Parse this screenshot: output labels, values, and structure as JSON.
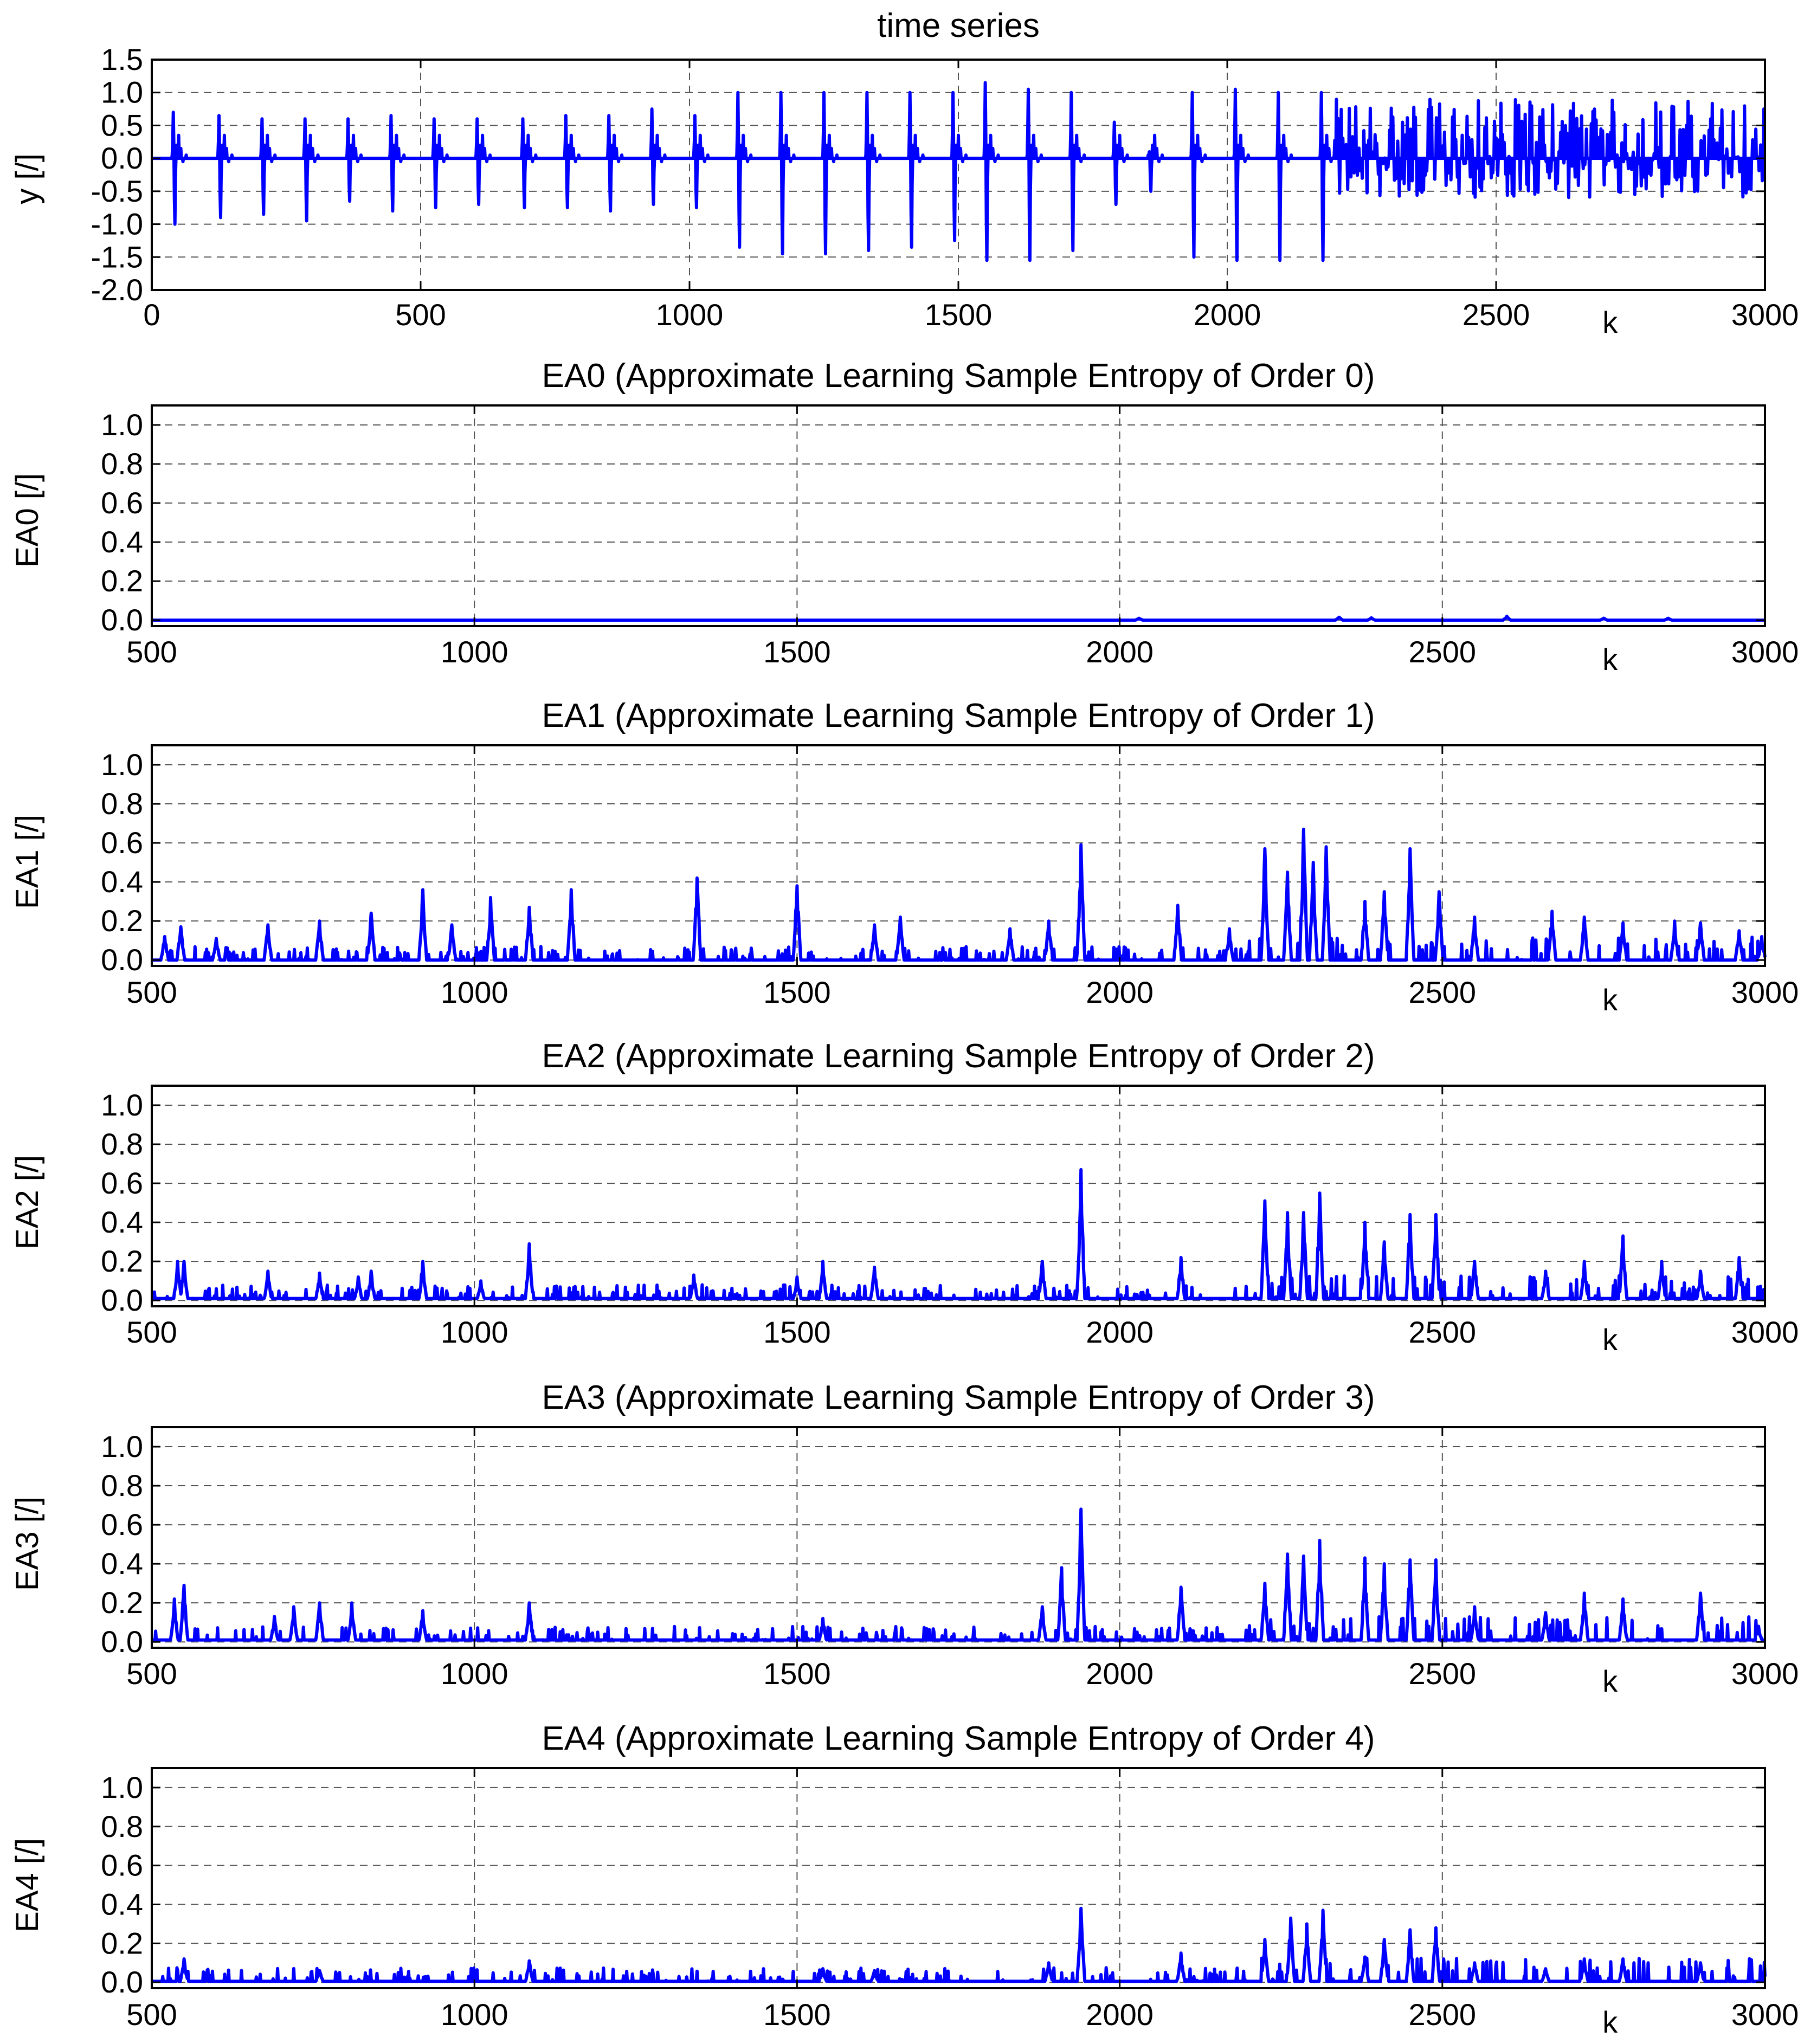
{
  "chart_data": [
    {
      "type": "line",
      "title": "time series",
      "xlabel": "k",
      "ylabel": "y [/]",
      "xlim": [
        0,
        3000
      ],
      "ylim": [
        -2.0,
        1.5
      ],
      "xticks": [
        "0",
        "500",
        "1000",
        "1500",
        "2000",
        "2500",
        "3000"
      ],
      "yticks": [
        "1.5",
        "1.0",
        "0.5",
        "0.0",
        "-0.5",
        "-1.0",
        "-1.5",
        "-2.0"
      ],
      "grid": true,
      "color": "#0000ff",
      "series": [
        {
          "name": "y",
          "spike_k": [
            40,
            125,
            205,
            285,
            365,
            445,
            525,
            605,
            690,
            770,
            850,
            930,
            1010,
            1090,
            1170,
            1250,
            1330,
            1410,
            1490,
            1550,
            1630,
            1710,
            1790,
            1855,
            1935,
            2015,
            2095,
            2175
          ],
          "spike_peak": [
            0.7,
            0.65,
            0.6,
            0.6,
            0.6,
            0.65,
            0.6,
            0.6,
            0.6,
            0.65,
            0.65,
            0.75,
            0.65,
            1.0,
            1.0,
            1.0,
            1.0,
            1.0,
            1.0,
            1.15,
            1.05,
            1.0,
            0.55,
            0.1,
            1.0,
            1.05,
            1.0,
            1.0
          ],
          "spike_trough": [
            -1.0,
            -0.9,
            -0.85,
            -0.95,
            -0.65,
            -0.8,
            -0.75,
            -0.7,
            -0.75,
            -0.75,
            -0.8,
            -0.7,
            -0.75,
            -1.35,
            -1.45,
            -1.45,
            -1.4,
            -1.35,
            -1.25,
            -1.55,
            -1.55,
            -1.4,
            -0.7,
            -0.5,
            -1.5,
            -1.55,
            -1.55,
            -1.55
          ],
          "noise_start_k": 2200,
          "noise_amplitude": [
            -0.6,
            0.9
          ]
        }
      ]
    },
    {
      "type": "line",
      "title": "EA0 (Approximate Learning Sample Entropy of Order 0)",
      "xlabel": "k",
      "ylabel": "EA0 [/]",
      "xlim": [
        500,
        3000
      ],
      "ylim": [
        -0.03,
        1.1
      ],
      "xticks": [
        "500",
        "1000",
        "1500",
        "2000",
        "2500",
        "3000"
      ],
      "yticks": [
        "1.0",
        "0.8",
        "0.6",
        "0.4",
        "0.2",
        "0.0"
      ],
      "grid": true,
      "color": "#0000ff",
      "series": [
        {
          "name": "EA0",
          "peaks": [
            [
              2030,
              0.01
            ],
            [
              2340,
              0.015
            ],
            [
              2390,
              0.012
            ],
            [
              2600,
              0.02
            ],
            [
              2750,
              0.01
            ],
            [
              2850,
              0.01
            ]
          ],
          "baseline": 0.0
        }
      ]
    },
    {
      "type": "line",
      "title": "EA1 (Approximate Learning Sample Entropy of Order 1)",
      "xlabel": "k",
      "ylabel": "EA1 [/]",
      "xlim": [
        500,
        3000
      ],
      "ylim": [
        -0.03,
        1.1
      ],
      "xticks": [
        "500",
        "1000",
        "1500",
        "2000",
        "2500",
        "3000"
      ],
      "yticks": [
        "1.0",
        "0.8",
        "0.6",
        "0.4",
        "0.2",
        "0.0"
      ],
      "grid": true,
      "color": "#0000ff",
      "series": [
        {
          "name": "EA1",
          "peaks": [
            [
              520,
              0.12
            ],
            [
              545,
              0.17
            ],
            [
              600,
              0.11
            ],
            [
              680,
              0.18
            ],
            [
              760,
              0.2
            ],
            [
              840,
              0.24
            ],
            [
              920,
              0.36
            ],
            [
              965,
              0.18
            ],
            [
              1025,
              0.32
            ],
            [
              1085,
              0.27
            ],
            [
              1150,
              0.36
            ],
            [
              1345,
              0.42
            ],
            [
              1500,
              0.38
            ],
            [
              1620,
              0.18
            ],
            [
              1660,
              0.22
            ],
            [
              1830,
              0.16
            ],
            [
              1890,
              0.2
            ],
            [
              1940,
              0.59
            ],
            [
              2090,
              0.28
            ],
            [
              2170,
              0.16
            ],
            [
              2225,
              0.57
            ],
            [
              2260,
              0.45
            ],
            [
              2285,
              0.67
            ],
            [
              2300,
              0.5
            ],
            [
              2320,
              0.58
            ],
            [
              2380,
              0.3
            ],
            [
              2410,
              0.35
            ],
            [
              2450,
              0.57
            ],
            [
              2495,
              0.35
            ],
            [
              2550,
              0.22
            ],
            [
              2670,
              0.25
            ],
            [
              2720,
              0.22
            ],
            [
              2780,
              0.19
            ],
            [
              2860,
              0.2
            ],
            [
              2900,
              0.19
            ],
            [
              2960,
              0.15
            ],
            [
              2995,
              0.12
            ]
          ],
          "baseline": 0.0
        }
      ]
    },
    {
      "type": "line",
      "title": "EA2 (Approximate Learning Sample Entropy of Order 2)",
      "xlabel": "k",
      "ylabel": "EA2 [/]",
      "xlim": [
        500,
        3000
      ],
      "ylim": [
        -0.03,
        1.1
      ],
      "xticks": [
        "500",
        "1000",
        "1500",
        "2000",
        "2500",
        "3000"
      ],
      "yticks": [
        "1.0",
        "0.8",
        "0.6",
        "0.4",
        "0.2",
        "0.0"
      ],
      "grid": true,
      "color": "#0000ff",
      "series": [
        {
          "name": "EA2",
          "peaks": [
            [
              540,
              0.2
            ],
            [
              550,
              0.2
            ],
            [
              680,
              0.15
            ],
            [
              760,
              0.14
            ],
            [
              820,
              0.12
            ],
            [
              840,
              0.15
            ],
            [
              920,
              0.2
            ],
            [
              1010,
              0.1
            ],
            [
              1085,
              0.29
            ],
            [
              1340,
              0.13
            ],
            [
              1500,
              0.12
            ],
            [
              1540,
              0.2
            ],
            [
              1620,
              0.17
            ],
            [
              1880,
              0.2
            ],
            [
              1940,
              0.67
            ],
            [
              2095,
              0.22
            ],
            [
              2225,
              0.51
            ],
            [
              2260,
              0.45
            ],
            [
              2285,
              0.45
            ],
            [
              2310,
              0.55
            ],
            [
              2380,
              0.4
            ],
            [
              2410,
              0.3
            ],
            [
              2450,
              0.44
            ],
            [
              2490,
              0.44
            ],
            [
              2550,
              0.2
            ],
            [
              2660,
              0.15
            ],
            [
              2720,
              0.2
            ],
            [
              2780,
              0.33
            ],
            [
              2840,
              0.2
            ],
            [
              2900,
              0.15
            ],
            [
              2960,
              0.22
            ]
          ],
          "baseline": 0.01
        }
      ]
    },
    {
      "type": "line",
      "title": "EA3 (Approximate Learning Sample Entropy of Order 3)",
      "xlabel": "k",
      "ylabel": "EA3 [/]",
      "xlim": [
        500,
        3000
      ],
      "ylim": [
        -0.03,
        1.1
      ],
      "xticks": [
        "500",
        "1000",
        "1500",
        "2000",
        "2500",
        "3000"
      ],
      "yticks": [
        "1.0",
        "0.8",
        "0.6",
        "0.4",
        "0.2",
        "0.0"
      ],
      "grid": true,
      "color": "#0000ff",
      "series": [
        {
          "name": "EA3",
          "peaks": [
            [
              535,
              0.22
            ],
            [
              550,
              0.29
            ],
            [
              690,
              0.13
            ],
            [
              720,
              0.18
            ],
            [
              760,
              0.2
            ],
            [
              810,
              0.2
            ],
            [
              920,
              0.16
            ],
            [
              1085,
              0.2
            ],
            [
              1540,
              0.12
            ],
            [
              1880,
              0.18
            ],
            [
              1910,
              0.38
            ],
            [
              1940,
              0.68
            ],
            [
              2095,
              0.28
            ],
            [
              2225,
              0.3
            ],
            [
              2260,
              0.45
            ],
            [
              2285,
              0.44
            ],
            [
              2310,
              0.52
            ],
            [
              2380,
              0.43
            ],
            [
              2410,
              0.4
            ],
            [
              2450,
              0.42
            ],
            [
              2490,
              0.42
            ],
            [
              2550,
              0.18
            ],
            [
              2660,
              0.15
            ],
            [
              2720,
              0.25
            ],
            [
              2780,
              0.22
            ],
            [
              2900,
              0.25
            ],
            [
              2990,
              0.08
            ]
          ],
          "baseline": 0.01
        }
      ]
    },
    {
      "type": "line",
      "title": "EA4 (Approximate Learning Sample Entropy of Order 4)",
      "xlabel": "k",
      "ylabel": "EA4 [/]",
      "xlim": [
        500,
        3000
      ],
      "ylim": [
        -0.03,
        1.1
      ],
      "xticks": [
        "500",
        "1000",
        "1500",
        "2000",
        "2500",
        "3000"
      ],
      "yticks": [
        "1.0",
        "0.8",
        "0.6",
        "0.4",
        "0.2",
        "0.0"
      ],
      "grid": true,
      "color": "#0000ff",
      "series": [
        {
          "name": "EA4",
          "peaks": [
            [
              550,
              0.12
            ],
            [
              760,
              0.06
            ],
            [
              1085,
              0.11
            ],
            [
              1540,
              0.07
            ],
            [
              1620,
              0.06
            ],
            [
              1890,
              0.1
            ],
            [
              1940,
              0.38
            ],
            [
              2095,
              0.15
            ],
            [
              2225,
              0.22
            ],
            [
              2265,
              0.33
            ],
            [
              2290,
              0.3
            ],
            [
              2315,
              0.37
            ],
            [
              2380,
              0.13
            ],
            [
              2410,
              0.22
            ],
            [
              2450,
              0.27
            ],
            [
              2490,
              0.28
            ],
            [
              2550,
              0.1
            ],
            [
              2660,
              0.07
            ],
            [
              2720,
              0.12
            ],
            [
              2780,
              0.12
            ],
            [
              2900,
              0.1
            ]
          ],
          "baseline": 0.005
        }
      ]
    }
  ]
}
